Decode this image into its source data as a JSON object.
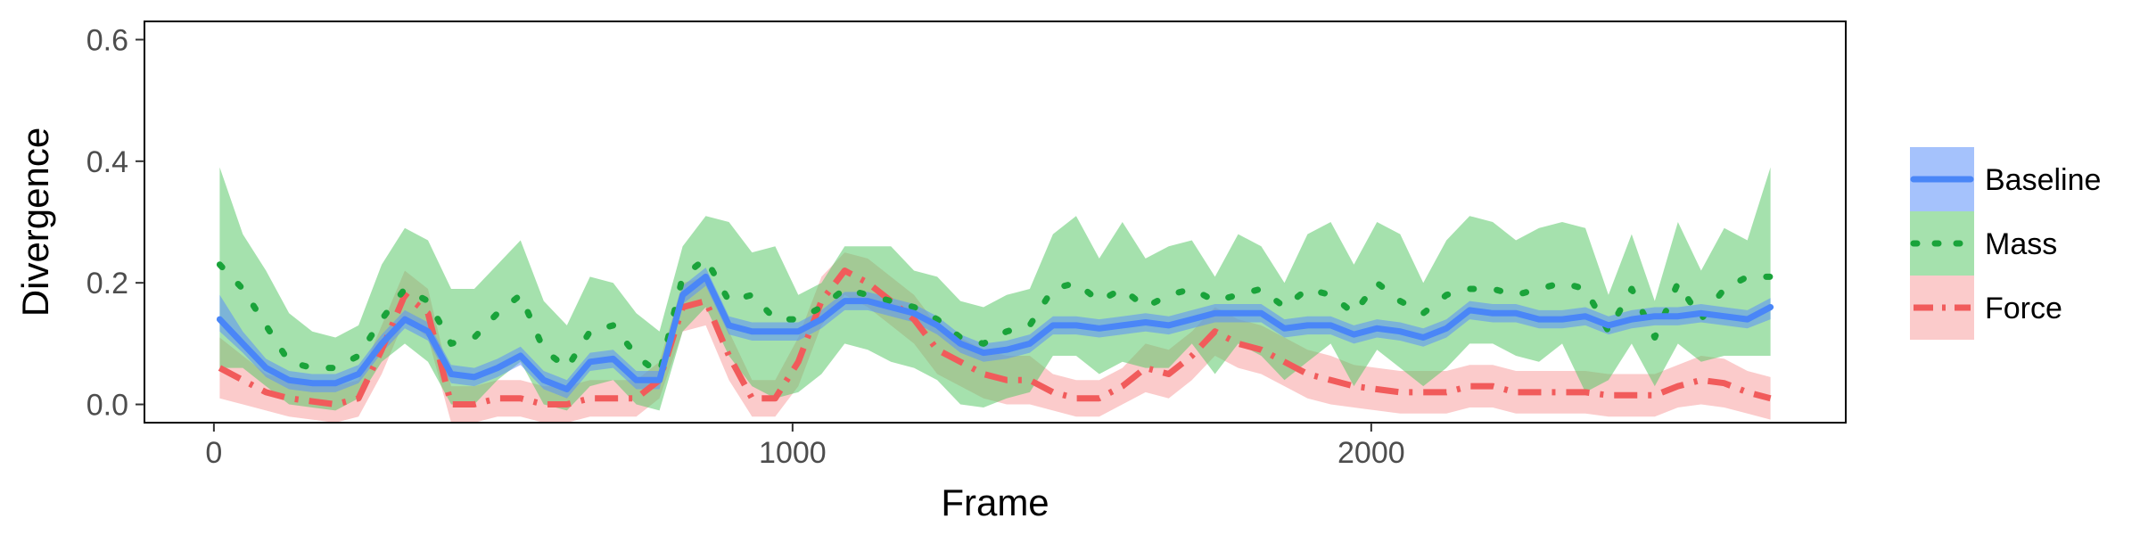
{
  "chart_data": {
    "type": "line",
    "title": "",
    "xlabel": "Frame",
    "ylabel": "Divergence",
    "xlim": [
      -120,
      2820
    ],
    "ylim": [
      -0.03,
      0.63
    ],
    "xticks": [
      0,
      1000,
      2000
    ],
    "yticks": [
      0.0,
      0.2,
      0.4,
      0.6
    ],
    "ytick_labels": [
      "0.0",
      "0.2",
      "0.4",
      "0.6"
    ],
    "grid": false,
    "legend_position": "right",
    "x": [
      10,
      50,
      90,
      130,
      170,
      210,
      250,
      290,
      330,
      370,
      410,
      450,
      490,
      530,
      570,
      610,
      650,
      690,
      730,
      770,
      810,
      850,
      890,
      930,
      970,
      1010,
      1050,
      1090,
      1130,
      1170,
      1210,
      1250,
      1290,
      1330,
      1370,
      1410,
      1450,
      1490,
      1530,
      1570,
      1610,
      1650,
      1690,
      1730,
      1770,
      1810,
      1850,
      1890,
      1930,
      1970,
      2010,
      2050,
      2090,
      2130,
      2170,
      2210,
      2250,
      2290,
      2330,
      2370,
      2410,
      2450,
      2490,
      2530,
      2570,
      2610,
      2650,
      2690
    ],
    "series": [
      {
        "name": "Baseline",
        "color": "#4A86F7",
        "band_color": "#5B8FF9",
        "line_style": "solid",
        "values": [
          0.14,
          0.1,
          0.06,
          0.04,
          0.035,
          0.035,
          0.05,
          0.1,
          0.14,
          0.12,
          0.05,
          0.045,
          0.06,
          0.08,
          0.04,
          0.025,
          0.07,
          0.075,
          0.04,
          0.04,
          0.18,
          0.21,
          0.13,
          0.12,
          0.12,
          0.12,
          0.14,
          0.17,
          0.17,
          0.16,
          0.15,
          0.13,
          0.1,
          0.085,
          0.09,
          0.1,
          0.13,
          0.13,
          0.125,
          0.13,
          0.135,
          0.13,
          0.14,
          0.15,
          0.15,
          0.15,
          0.125,
          0.13,
          0.13,
          0.115,
          0.125,
          0.12,
          0.11,
          0.125,
          0.155,
          0.15,
          0.15,
          0.14,
          0.14,
          0.145,
          0.13,
          0.14,
          0.145,
          0.145,
          0.15,
          0.145,
          0.14,
          0.16
        ],
        "lower": [
          0.12,
          0.085,
          0.045,
          0.025,
          0.02,
          0.02,
          0.035,
          0.085,
          0.125,
          0.105,
          0.035,
          0.03,
          0.045,
          0.065,
          0.025,
          0.01,
          0.055,
          0.06,
          0.025,
          0.025,
          0.165,
          0.195,
          0.115,
          0.105,
          0.105,
          0.105,
          0.125,
          0.155,
          0.155,
          0.145,
          0.135,
          0.115,
          0.085,
          0.07,
          0.075,
          0.085,
          0.115,
          0.115,
          0.11,
          0.115,
          0.12,
          0.115,
          0.125,
          0.135,
          0.135,
          0.135,
          0.11,
          0.115,
          0.115,
          0.1,
          0.11,
          0.105,
          0.095,
          0.11,
          0.14,
          0.135,
          0.135,
          0.125,
          0.125,
          0.13,
          0.115,
          0.125,
          0.13,
          0.13,
          0.135,
          0.13,
          0.125,
          0.14
        ],
        "upper": [
          0.18,
          0.12,
          0.075,
          0.055,
          0.05,
          0.05,
          0.065,
          0.115,
          0.155,
          0.135,
          0.065,
          0.06,
          0.075,
          0.095,
          0.055,
          0.04,
          0.085,
          0.09,
          0.055,
          0.055,
          0.195,
          0.225,
          0.145,
          0.135,
          0.135,
          0.135,
          0.155,
          0.185,
          0.185,
          0.175,
          0.165,
          0.145,
          0.115,
          0.1,
          0.105,
          0.115,
          0.145,
          0.145,
          0.14,
          0.145,
          0.15,
          0.145,
          0.155,
          0.165,
          0.165,
          0.165,
          0.14,
          0.145,
          0.145,
          0.13,
          0.14,
          0.135,
          0.125,
          0.14,
          0.17,
          0.165,
          0.165,
          0.155,
          0.155,
          0.16,
          0.145,
          0.155,
          0.16,
          0.16,
          0.165,
          0.16,
          0.155,
          0.175
        ]
      },
      {
        "name": "Mass",
        "color": "#1AA33A",
        "band_color": "#5BC96A",
        "line_style": "dotted",
        "values": [
          0.23,
          0.19,
          0.13,
          0.07,
          0.06,
          0.06,
          0.08,
          0.14,
          0.19,
          0.17,
          0.1,
          0.11,
          0.15,
          0.18,
          0.09,
          0.06,
          0.12,
          0.13,
          0.08,
          0.05,
          0.21,
          0.24,
          0.17,
          0.18,
          0.14,
          0.14,
          0.16,
          0.19,
          0.18,
          0.17,
          0.16,
          0.14,
          0.11,
          0.1,
          0.12,
          0.13,
          0.19,
          0.2,
          0.17,
          0.19,
          0.16,
          0.18,
          0.19,
          0.17,
          0.18,
          0.19,
          0.16,
          0.19,
          0.18,
          0.15,
          0.2,
          0.17,
          0.15,
          0.18,
          0.19,
          0.19,
          0.18,
          0.19,
          0.2,
          0.19,
          0.12,
          0.19,
          0.11,
          0.2,
          0.14,
          0.19,
          0.21,
          0.21
        ],
        "lower": [
          0.06,
          0.06,
          0.03,
          0.0,
          -0.005,
          -0.01,
          0.01,
          0.07,
          0.1,
          0.07,
          0.0,
          0.0,
          0.04,
          0.07,
          0.0,
          -0.01,
          0.03,
          0.04,
          0.0,
          -0.01,
          0.12,
          0.16,
          0.08,
          0.03,
          0.01,
          0.02,
          0.05,
          0.1,
          0.09,
          0.07,
          0.06,
          0.04,
          0.0,
          -0.005,
          0.01,
          0.02,
          0.08,
          0.08,
          0.05,
          0.07,
          0.06,
          0.06,
          0.1,
          0.05,
          0.1,
          0.08,
          0.04,
          0.07,
          0.1,
          0.03,
          0.09,
          0.06,
          0.03,
          0.06,
          0.1,
          0.1,
          0.08,
          0.07,
          0.1,
          0.02,
          0.04,
          0.1,
          0.03,
          0.1,
          0.07,
          0.08,
          0.08,
          0.08
        ],
        "upper": [
          0.39,
          0.28,
          0.22,
          0.15,
          0.12,
          0.11,
          0.13,
          0.23,
          0.29,
          0.27,
          0.19,
          0.19,
          0.23,
          0.27,
          0.17,
          0.13,
          0.21,
          0.2,
          0.15,
          0.12,
          0.26,
          0.31,
          0.3,
          0.25,
          0.26,
          0.18,
          0.2,
          0.26,
          0.26,
          0.26,
          0.22,
          0.21,
          0.17,
          0.16,
          0.18,
          0.19,
          0.28,
          0.31,
          0.24,
          0.3,
          0.24,
          0.26,
          0.27,
          0.21,
          0.28,
          0.26,
          0.2,
          0.28,
          0.3,
          0.23,
          0.3,
          0.28,
          0.2,
          0.27,
          0.31,
          0.3,
          0.27,
          0.29,
          0.3,
          0.29,
          0.18,
          0.28,
          0.17,
          0.3,
          0.22,
          0.29,
          0.27,
          0.39
        ]
      },
      {
        "name": "Force",
        "color": "#F15B5B",
        "band_color": "#F8A0A0",
        "line_style": "dashdot",
        "values": [
          0.06,
          0.04,
          0.02,
          0.01,
          0.005,
          0.0,
          0.01,
          0.09,
          0.18,
          0.15,
          0.0,
          0.0,
          0.01,
          0.01,
          0.0,
          0.0,
          0.01,
          0.01,
          0.01,
          0.04,
          0.16,
          0.17,
          0.08,
          0.01,
          0.01,
          0.07,
          0.17,
          0.22,
          0.2,
          0.17,
          0.14,
          0.09,
          0.07,
          0.05,
          0.04,
          0.04,
          0.02,
          0.01,
          0.01,
          0.03,
          0.06,
          0.05,
          0.08,
          0.12,
          0.1,
          0.09,
          0.07,
          0.05,
          0.04,
          0.03,
          0.025,
          0.02,
          0.02,
          0.02,
          0.03,
          0.03,
          0.02,
          0.02,
          0.02,
          0.02,
          0.015,
          0.015,
          0.015,
          0.03,
          0.04,
          0.035,
          0.02,
          0.01
        ],
        "lower": [
          0.01,
          0.0,
          -0.01,
          -0.02,
          -0.025,
          -0.03,
          -0.02,
          0.05,
          0.14,
          0.11,
          -0.03,
          -0.03,
          -0.02,
          -0.02,
          -0.03,
          -0.03,
          -0.02,
          -0.02,
          -0.02,
          0.01,
          0.12,
          0.13,
          0.04,
          -0.02,
          -0.02,
          0.03,
          0.13,
          0.18,
          0.16,
          0.13,
          0.1,
          0.05,
          0.03,
          0.01,
          0.0,
          0.0,
          -0.01,
          -0.02,
          -0.02,
          0.0,
          0.02,
          0.01,
          0.04,
          0.08,
          0.06,
          0.05,
          0.03,
          0.01,
          0.0,
          -0.005,
          -0.01,
          -0.015,
          -0.015,
          -0.015,
          -0.005,
          -0.005,
          -0.015,
          -0.015,
          -0.015,
          -0.015,
          -0.02,
          -0.02,
          -0.02,
          -0.005,
          0.0,
          -0.005,
          -0.015,
          -0.025
        ],
        "upper": [
          0.11,
          0.08,
          0.05,
          0.04,
          0.035,
          0.03,
          0.04,
          0.13,
          0.22,
          0.19,
          0.03,
          0.03,
          0.04,
          0.04,
          0.03,
          0.03,
          0.04,
          0.04,
          0.04,
          0.07,
          0.2,
          0.21,
          0.12,
          0.04,
          0.04,
          0.11,
          0.21,
          0.25,
          0.24,
          0.21,
          0.18,
          0.13,
          0.11,
          0.09,
          0.08,
          0.08,
          0.05,
          0.04,
          0.04,
          0.06,
          0.1,
          0.09,
          0.12,
          0.16,
          0.14,
          0.13,
          0.11,
          0.09,
          0.08,
          0.065,
          0.06,
          0.055,
          0.055,
          0.055,
          0.065,
          0.065,
          0.055,
          0.055,
          0.055,
          0.055,
          0.05,
          0.05,
          0.05,
          0.065,
          0.08,
          0.075,
          0.055,
          0.045
        ]
      }
    ]
  }
}
